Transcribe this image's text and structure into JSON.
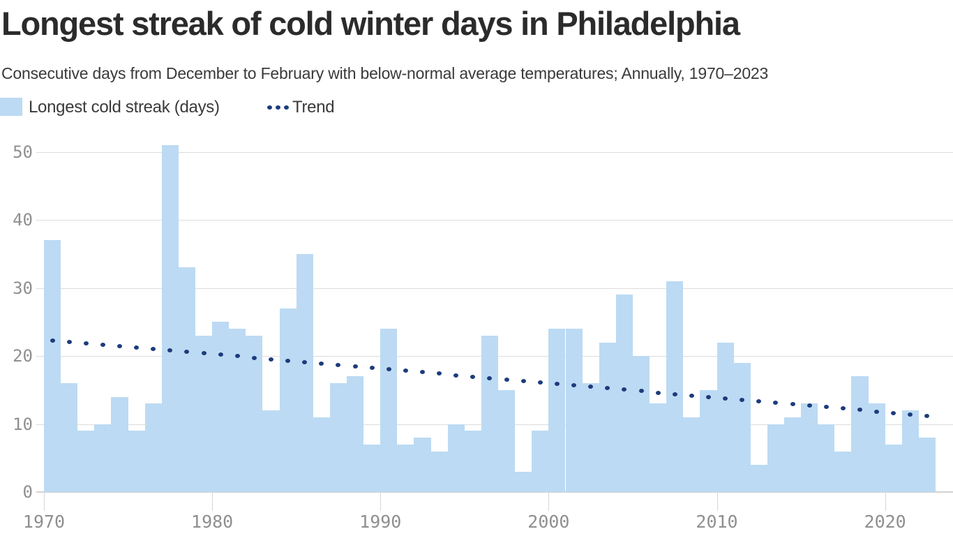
{
  "header": {
    "title": "Longest streak of cold winter days in Philadelphia",
    "subtitle": "Consecutive days from December to February with below-normal average temperatures; Annually, 1970–2023"
  },
  "legend": {
    "bar_label": "Longest cold streak (days)",
    "trend_label": "Trend"
  },
  "chart_data": {
    "type": "bar",
    "title": "Longest streak of cold winter days in Philadelphia",
    "xlabel": "",
    "ylabel": "Longest cold streak (days)",
    "categories": [
      1970,
      1971,
      1972,
      1973,
      1974,
      1975,
      1976,
      1977,
      1978,
      1979,
      1980,
      1981,
      1982,
      1983,
      1984,
      1985,
      1986,
      1987,
      1988,
      1989,
      1990,
      1991,
      1992,
      1993,
      1994,
      1995,
      1996,
      1997,
      1998,
      1999,
      2000,
      2001,
      2002,
      2003,
      2004,
      2005,
      2006,
      2007,
      2008,
      2009,
      2010,
      2011,
      2012,
      2013,
      2014,
      2015,
      2016,
      2017,
      2018,
      2019,
      2020,
      2021,
      2022
    ],
    "values": [
      37,
      16,
      9,
      10,
      14,
      9,
      13,
      51,
      33,
      23,
      25,
      24,
      23,
      12,
      27,
      35,
      11,
      16,
      17,
      7,
      24,
      7,
      8,
      6,
      10,
      9,
      23,
      15,
      3,
      9,
      24,
      24,
      16,
      22,
      29,
      20,
      13,
      31,
      11,
      15,
      22,
      19,
      4,
      10,
      11,
      13,
      10,
      6,
      17,
      13,
      7,
      12,
      8
    ],
    "trend": {
      "name": "Trend",
      "style": "dotted",
      "start_value": 22.3,
      "end_value": 11.2
    },
    "ylim": [
      0,
      52
    ],
    "yticks": [
      0,
      10,
      20,
      30,
      40,
      50
    ],
    "xticks": [
      1970,
      1980,
      1990,
      2000,
      2010,
      2020
    ],
    "grid": "horizontal",
    "legend_position": "top-left"
  },
  "colors": {
    "bar": "#bcdaf3",
    "trend": "#1c3c7c",
    "title": "#2b2b2b",
    "subtitle": "#3a3a3a",
    "axis_label": "#8f8f8f",
    "gridline": "#dcdcdc",
    "background": "#ffffff"
  }
}
